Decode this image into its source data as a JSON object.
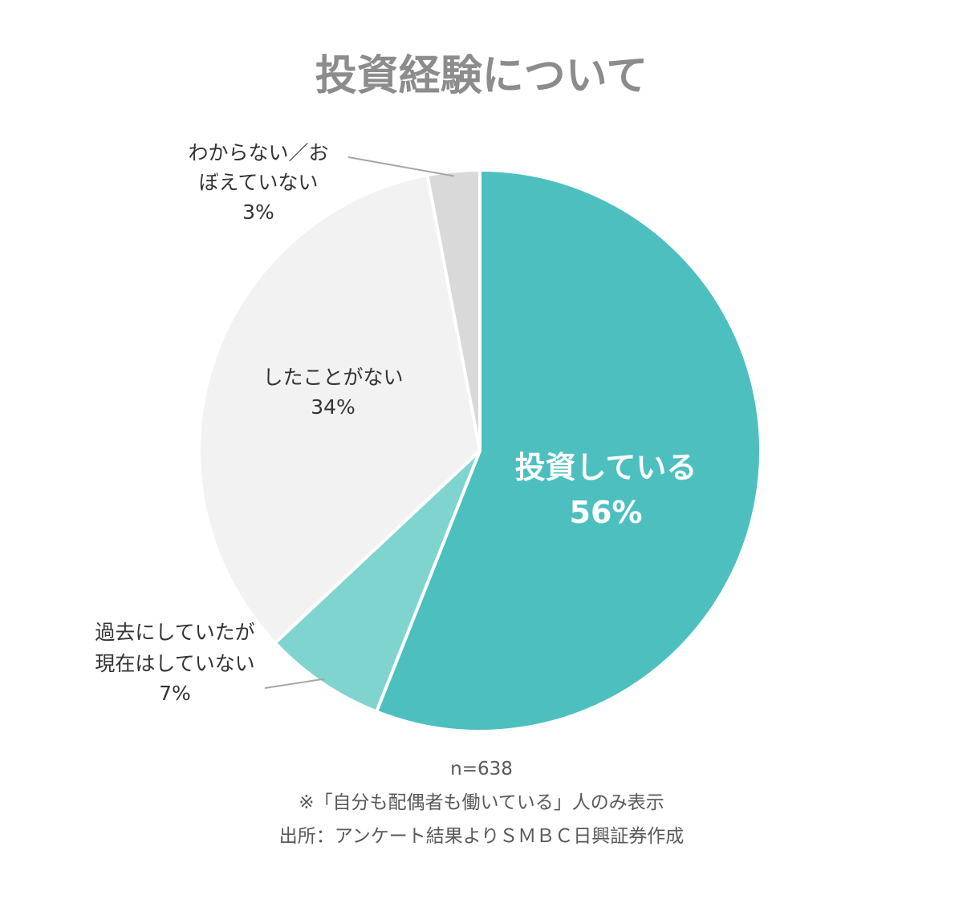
{
  "chart_data": {
    "type": "pie",
    "title": "投資経験について",
    "slices": [
      {
        "label": "投資している",
        "value": 56,
        "value_label": "56%",
        "color": "#4dbfbf"
      },
      {
        "label": "過去にしていたが現在はしていない",
        "label_lines": [
          "過去にしていたが",
          "現在はしていない"
        ],
        "value": 7,
        "value_label": "7%",
        "color": "#80d4d0"
      },
      {
        "label": "したことがない",
        "label_lines": [
          "したことがない"
        ],
        "value": 34,
        "value_label": "34%",
        "color": "#f2f2f2"
      },
      {
        "label": "わからない／おぼえていない",
        "label_lines": [
          "わからない／お",
          "ぼえていない"
        ],
        "value": 3,
        "value_label": "3%",
        "color": "#d9d9d9"
      }
    ],
    "start": "12 o'clock",
    "direction": "clockwise",
    "legend": "none"
  },
  "footnotes": [
    "n=638",
    "※「自分も配偶者も働いている」人のみ表示",
    "出所：アンケート結果よりＳＭＢＣ日興証券作成"
  ]
}
